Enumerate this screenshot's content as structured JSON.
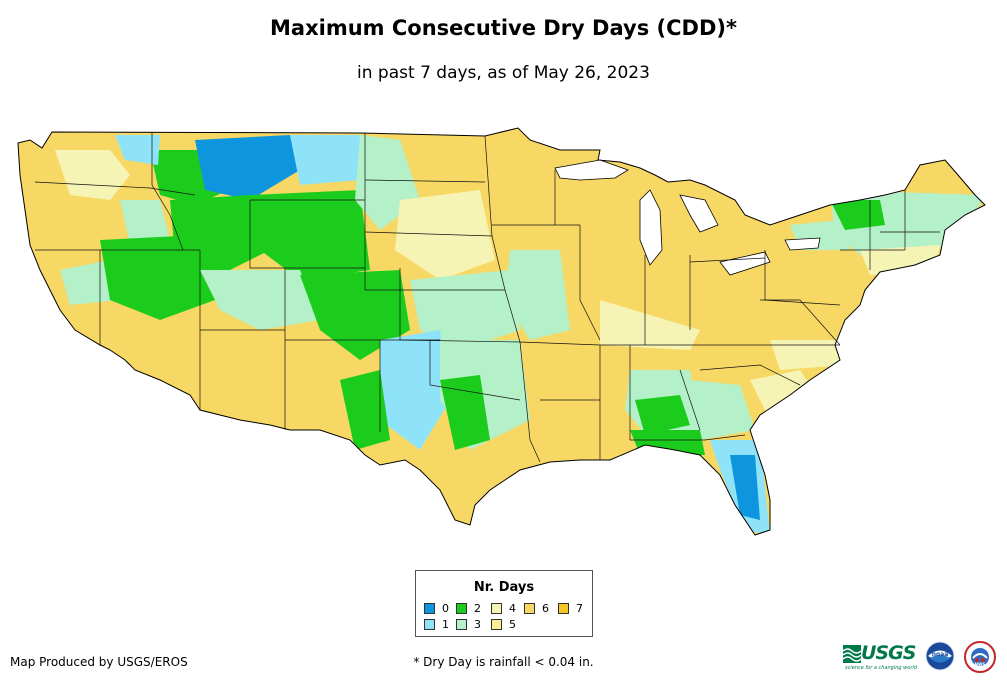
{
  "map": {
    "title": "Maximum Consecutive Dry Days (CDD)*",
    "subtitle": "in past 7 days, as of May 26, 2023",
    "region": "Contiguous United States"
  },
  "legend": {
    "title": "Nr. Days",
    "items": [
      {
        "label": "0",
        "color": "#0d96dd"
      },
      {
        "label": "1",
        "color": "#8fe3f8"
      },
      {
        "label": "2",
        "color": "#1ccc1c"
      },
      {
        "label": "3",
        "color": "#b4f0c8"
      },
      {
        "label": "4",
        "color": "#f6f4b4"
      },
      {
        "label": "5",
        "color": "#fbec96"
      },
      {
        "label": "6",
        "color": "#f8d864"
      },
      {
        "label": "7",
        "color": "#f6c426"
      }
    ]
  },
  "footer": {
    "credit": "Map Produced by USGS/EROS",
    "footnote": "* Dry Day is rainfall < 0.04 in."
  },
  "logos": {
    "usgs": "USGS",
    "usgs_tagline": "science for a changing world",
    "noaa": "noaa",
    "nws": "NWS"
  }
}
